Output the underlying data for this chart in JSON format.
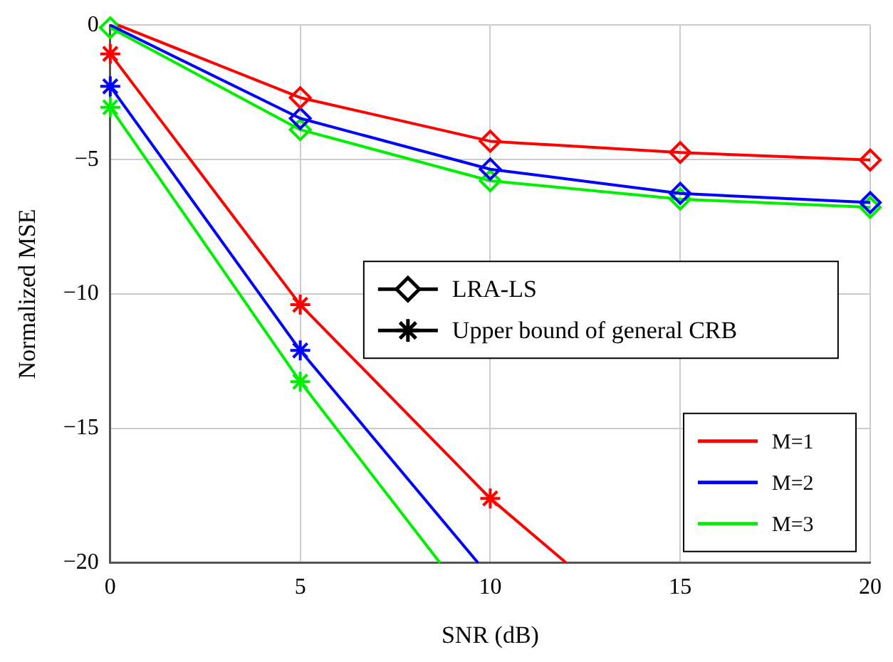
{
  "chart_data": {
    "type": "line",
    "xlabel": "SNR (dB)",
    "ylabel": "Normalized MSE",
    "xlim": [
      0,
      20
    ],
    "xticks": [
      0,
      5,
      10,
      15,
      20
    ],
    "ylim": [
      -20,
      0
    ],
    "yticks": [
      {
        "value": -20,
        "label": "−20"
      },
      {
        "value": -15,
        "label": "−15"
      },
      {
        "value": -10,
        "label": "−10"
      },
      {
        "value": -5,
        "label": "−5"
      },
      0
    ],
    "grid": true,
    "legend": "bottom right",
    "line_style": "solid",
    "series": [
      {
        "color": "#ff0000",
        "marker": "diamond",
        "x": [
          0.2,
          5,
          10,
          15,
          20
        ],
        "values": [
          0,
          -2.7,
          -4.32,
          -4.74,
          -5.02
        ]
      },
      {
        "color": "#0000ff",
        "marker": "diamond",
        "x": [
          0,
          5,
          10,
          15,
          20
        ],
        "values": [
          0,
          -3.47,
          -5.36,
          -6.26,
          -6.6
        ]
      },
      {
        "color": "#00ee00",
        "marker": "diamond",
        "x": [
          0,
          5,
          10,
          15,
          20
        ],
        "values": [
          -0.1,
          -3.89,
          -5.79,
          -6.47,
          -6.78
        ]
      },
      {
        "color": "#ff0000",
        "marker": "cross",
        "x": [
          0,
          5,
          10,
          12
        ],
        "values": [
          -1.07,
          -10.4,
          -17.6,
          -20
        ]
      },
      {
        "color": "#0000ff",
        "marker": "cross",
        "x": [
          0,
          5,
          9.68
        ],
        "values": [
          -2.28,
          -12.1,
          -20
        ]
      },
      {
        "color": "#00ee00",
        "marker": "cross",
        "x": [
          0,
          5,
          8.68
        ],
        "values": [
          -3.06,
          -13.26,
          -20
        ]
      },
      {
        "name": "LRA-LS",
        "color": "#000000",
        "marker": "diamond"
      },
      {
        "name": "Upper bound of general CRB",
        "color": "#000000",
        "marker": "cross"
      },
      {
        "name": "M=1",
        "color": "#ff0000",
        "marker": "none"
      },
      {
        "name": "M=2",
        "color": "#0000ff",
        "marker": "none"
      },
      {
        "name": "M=3",
        "color": "#00ee00",
        "marker": "none"
      }
    ]
  }
}
